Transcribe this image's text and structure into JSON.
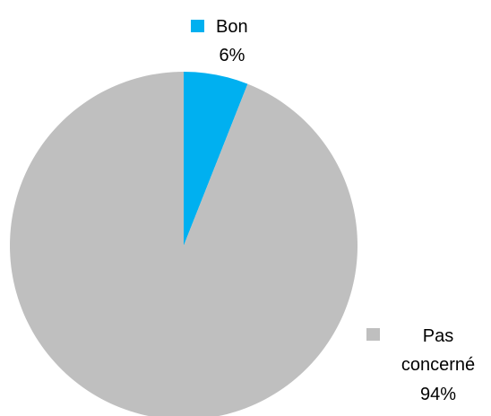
{
  "chart_data": {
    "type": "pie",
    "title": "",
    "slices": [
      {
        "label": "Bon",
        "percent_label": "6%",
        "value": 6,
        "color": "#00b0f0"
      },
      {
        "label_lines": [
          "Pas",
          "concerné"
        ],
        "percent_label": "94%",
        "value": 94,
        "color": "#bfbfbf"
      }
    ],
    "start_angle": "12 o'clock",
    "direction": "clockwise",
    "legend": "data labels with color keys beside each slice"
  }
}
